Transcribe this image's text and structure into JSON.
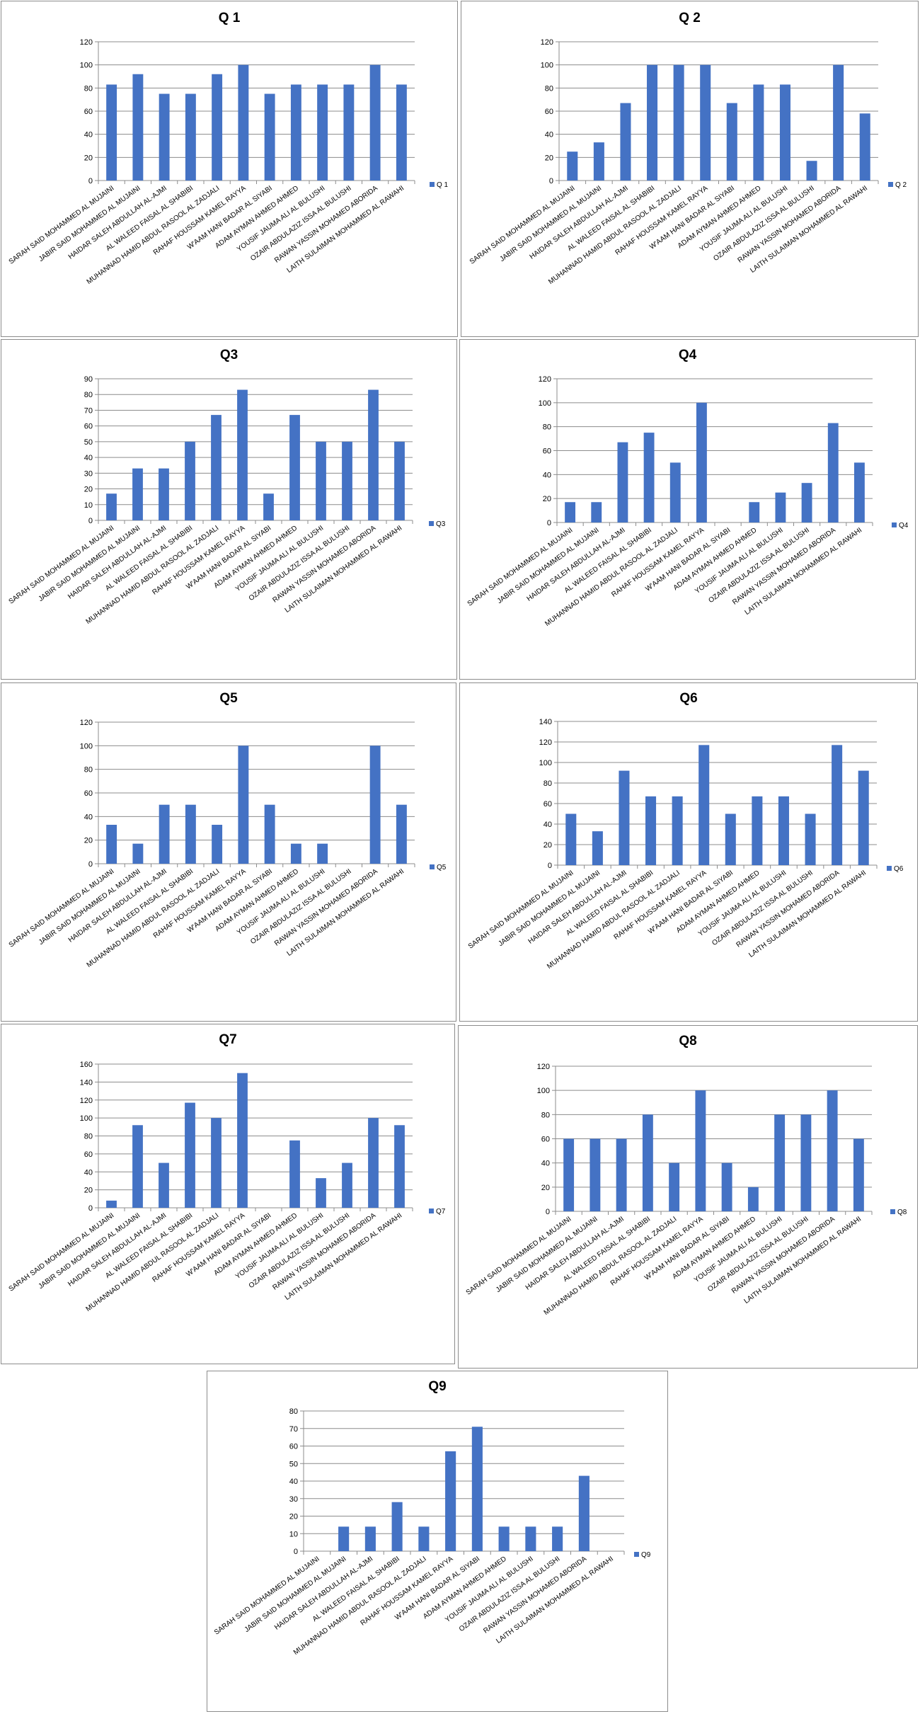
{
  "colors": {
    "bar": "#4472C4",
    "grid": "#8c8c8c",
    "axis": "#8c8c8c"
  },
  "chart_data": [
    {
      "type": "bar",
      "title": "Q 1",
      "legend": "Q 1",
      "ylim": [
        0,
        120
      ],
      "ticks": [
        0,
        20,
        40,
        60,
        80,
        100,
        120
      ],
      "legend_position": "right",
      "categories": [
        "SARAH SAID MOHAMMED AL MUJAINI",
        "JABIR SAID MOHAMMED AL MUJAINI",
        "HAIDAR SALEH ABDULLAH AL-AJMI",
        "AL WALEED FAISAL AL SHABIBI",
        "MUHANNAD HAMID ABDUL RASOOL AL ZADJALI",
        "RAHAF HOUSSAM KAMEL RAYYA",
        "W'AAM HANI BADAR AL SIYABI",
        "ADAM AYMAN AHMED AHMED",
        "YOUSIF JAUMA ALI AL BULUSHI",
        "OZAIR ABDULAZIZ ISSA AL BULUSHI",
        "RAWAN YASSIN MOHAMED ABORIDA",
        "LAITH SULAIMAN MOHAMMED AL RAWAHI"
      ],
      "values": [
        83,
        92,
        75,
        75,
        92,
        100,
        75,
        83,
        83,
        83,
        100,
        83
      ]
    },
    {
      "type": "bar",
      "title": "Q 2",
      "legend": "Q 2",
      "ylim": [
        0,
        120
      ],
      "ticks": [
        0,
        20,
        40,
        60,
        80,
        100,
        120
      ],
      "legend_position": "right",
      "categories": [
        "SARAH SAID MOHAMMED AL MUJAINI",
        "JABIR SAID MOHAMMED AL MUJAINI",
        "HAIDAR SALEH ABDULLAH AL-AJMI",
        "AL WALEED FAISAL AL SHABIBI",
        "MUHANNAD HAMID ABDUL RASOOL AL ZADJALI",
        "RAHAF HOUSSAM KAMEL RAYYA",
        "W'AAM HANI BADAR AL SIYABI",
        "ADAM AYMAN AHMED AHMED",
        "YOUSIF JAUMA ALI AL BULUSHI",
        "OZAIR ABDULAZIZ ISSA AL BULUSHI",
        "RAWAN YASSIN MOHAMED ABORIDA",
        "LAITH SULAIMAN MOHAMMED AL RAWAHI"
      ],
      "values": [
        25,
        33,
        67,
        100,
        100,
        100,
        67,
        83,
        83,
        17,
        100,
        58
      ]
    },
    {
      "type": "bar",
      "title": "Q3",
      "legend": "Q3",
      "ylim": [
        0,
        90
      ],
      "ticks": [
        0,
        10,
        20,
        30,
        40,
        50,
        60,
        70,
        80,
        90
      ],
      "legend_position": "right",
      "categories": [
        "SARAH SAID MOHAMMED AL MUJAINI",
        "JABIR SAID MOHAMMED AL MUJAINI",
        "HAIDAR SALEH ABDULLAH AL-AJMI",
        "AL WALEED FAISAL AL SHABIBI",
        "MUHANNAD HAMID ABDUL RASOOL AL ZADJALI",
        "RAHAF HOUSSAM KAMEL RAYYA",
        "W'AAM HANI BADAR AL SIYABI",
        "ADAM AYMAN AHMED AHMED",
        "YOUSIF JAUMA ALI AL BULUSHI",
        "OZAIR ABDULAZIZ ISSA AL BULUSHI",
        "RAWAN YASSIN MOHAMED ABORIDA",
        "LAITH SULAIMAN MOHAMMED AL RAWAHI"
      ],
      "values": [
        17,
        33,
        33,
        50,
        67,
        83,
        17,
        67,
        50,
        50,
        83,
        50
      ]
    },
    {
      "type": "bar",
      "title": "Q4",
      "legend": "Q4",
      "ylim": [
        0,
        120
      ],
      "ticks": [
        0,
        20,
        40,
        60,
        80,
        100,
        120
      ],
      "legend_position": "right",
      "categories": [
        "SARAH SAID MOHAMMED AL MUJAINI",
        "JABIR SAID MOHAMMED AL MUJAINI",
        "HAIDAR SALEH ABDULLAH AL-AJMI",
        "AL WALEED FAISAL AL SHABIBI",
        "MUHANNAD HAMID ABDUL RASOOL AL ZADJALI",
        "RAHAF HOUSSAM KAMEL RAYYA",
        "W'AAM HANI BADAR AL SIYABI",
        "ADAM AYMAN AHMED AHMED",
        "YOUSIF JAUMA ALI AL BULUSHI",
        "OZAIR ABDULAZIZ ISSA AL BULUSHI",
        "RAWAN YASSIN MOHAMED ABORIDA",
        "LAITH SULAIMAN MOHAMMED AL RAWAHI"
      ],
      "values": [
        17,
        17,
        67,
        75,
        50,
        100,
        0,
        17,
        25,
        33,
        83,
        50
      ]
    },
    {
      "type": "bar",
      "title": "Q5",
      "legend": "Q5",
      "ylim": [
        0,
        120
      ],
      "ticks": [
        0,
        20,
        40,
        60,
        80,
        100,
        120
      ],
      "legend_position": "right",
      "categories": [
        "SARAH SAID MOHAMMED AL MUJAINI",
        "JABIR SAID MOHAMMED AL MUJAINI",
        "HAIDAR SALEH ABDULLAH AL-AJMI",
        "AL WALEED FAISAL AL SHABIBI",
        "MUHANNAD HAMID ABDUL RASOOL AL ZADJALI",
        "RAHAF HOUSSAM KAMEL RAYYA",
        "W'AAM HANI BADAR AL SIYABI",
        "ADAM AYMAN AHMED AHMED",
        "YOUSIF JAUMA ALI AL BULUSHI",
        "OZAIR ABDULAZIZ ISSA AL BULUSHI",
        "RAWAN YASSIN MOHAMED ABORIDA",
        "LAITH SULAIMAN MOHAMMED AL RAWAHI"
      ],
      "values": [
        33,
        17,
        50,
        50,
        33,
        100,
        50,
        17,
        17,
        0,
        100,
        50
      ]
    },
    {
      "type": "bar",
      "title": "Q6",
      "legend": "Q6",
      "ylim": [
        0,
        140
      ],
      "ticks": [
        0,
        20,
        40,
        60,
        80,
        100,
        120,
        140
      ],
      "legend_position": "right",
      "categories": [
        "SARAH SAID MOHAMMED AL MUJAINI",
        "JABIR SAID MOHAMMED AL MUJAINI",
        "HAIDAR SALEH ABDULLAH AL-AJMI",
        "AL WALEED FAISAL AL SHABIBI",
        "MUHANNAD HAMID ABDUL RASOOL AL ZADJALI",
        "RAHAF HOUSSAM KAMEL RAYYA",
        "W'AAM HANI BADAR AL SIYABI",
        "ADAM AYMAN AHMED AHMED",
        "YOUSIF JAUMA ALI AL BULUSHI",
        "OZAIR ABDULAZIZ ISSA AL BULUSHI",
        "RAWAN YASSIN MOHAMED ABORIDA",
        "LAITH SULAIMAN MOHAMMED AL RAWAHI"
      ],
      "values": [
        50,
        33,
        92,
        67,
        67,
        117,
        50,
        67,
        67,
        50,
        117,
        92
      ]
    },
    {
      "type": "bar",
      "title": "Q7",
      "legend": "Q7",
      "ylim": [
        0,
        160
      ],
      "ticks": [
        0,
        20,
        40,
        60,
        80,
        100,
        120,
        140,
        160
      ],
      "legend_position": "right",
      "categories": [
        "SARAH SAID MOHAMMED AL MUJAINI",
        "JABIR SAID MOHAMMED AL MUJAINI",
        "HAIDAR SALEH ABDULLAH AL-AJMI",
        "AL WALEED FAISAL AL SHABIBI",
        "MUHANNAD HAMID ABDUL RASOOL AL ZADJALI",
        "RAHAF HOUSSAM KAMEL RAYYA",
        "W'AAM HANI BADAR AL SIYABI",
        "ADAM AYMAN AHMED AHMED",
        "YOUSIF JAUMA ALI AL BULUSHI",
        "OZAIR ABDULAZIZ ISSA AL BULUSHI",
        "RAWAN YASSIN MOHAMED ABORIDA",
        "LAITH SULAIMAN MOHAMMED AL RAWAHI"
      ],
      "values": [
        8,
        92,
        50,
        117,
        100,
        150,
        0,
        75,
        33,
        50,
        100,
        92
      ]
    },
    {
      "type": "bar",
      "title": "Q8",
      "legend": "Q8",
      "ylim": [
        0,
        120
      ],
      "ticks": [
        0,
        20,
        40,
        60,
        80,
        100,
        120
      ],
      "legend_position": "right",
      "categories": [
        "SARAH SAID MOHAMMED AL MUJAINI",
        "JABIR SAID MOHAMMED AL MUJAINI",
        "HAIDAR SALEH ABDULLAH AL-AJMI",
        "AL WALEED FAISAL AL SHABIBI",
        "MUHANNAD HAMID ABDUL RASOOL AL ZADJALI",
        "RAHAF HOUSSAM KAMEL RAYYA",
        "W'AAM HANI BADAR AL SIYABI",
        "ADAM AYMAN AHMED AHMED",
        "YOUSIF JAUMA ALI AL BULUSHI",
        "OZAIR ABDULAZIZ ISSA AL BULUSHI",
        "RAWAN YASSIN MOHAMED ABORIDA",
        "LAITH SULAIMAN MOHAMMED AL RAWAHI"
      ],
      "values": [
        60,
        60,
        60,
        80,
        40,
        100,
        40,
        20,
        80,
        80,
        100,
        60
      ]
    },
    {
      "type": "bar",
      "title": "Q9",
      "legend": "Q9",
      "ylim": [
        0,
        80
      ],
      "ticks": [
        0,
        10,
        20,
        30,
        40,
        50,
        60,
        70,
        80
      ],
      "legend_position": "right",
      "categories": [
        "SARAH SAID MOHAMMED AL MUJAINI",
        "JABIR SAID MOHAMMED AL MUJAINI",
        "HAIDAR SALEH ABDULLAH AL-AJMI",
        "AL WALEED FAISAL AL SHABIBI",
        "MUHANNAD HAMID ABDUL RASOOL AL ZADJALI",
        "RAHAF HOUSSAM KAMEL RAYYA",
        "W'AAM HANI BADAR AL SIYABI",
        "ADAM AYMAN AHMED AHMED",
        "YOUSIF JAUMA ALI AL BULUSHI",
        "OZAIR ABDULAZIZ ISSA AL BULUSHI",
        "RAWAN YASSIN MOHAMED ABORIDA",
        "LAITH SULAIMAN MOHAMMED AL RAWAHI"
      ],
      "values": [
        0,
        14,
        14,
        28,
        14,
        57,
        71,
        14,
        14,
        14,
        43,
        0
      ]
    }
  ]
}
